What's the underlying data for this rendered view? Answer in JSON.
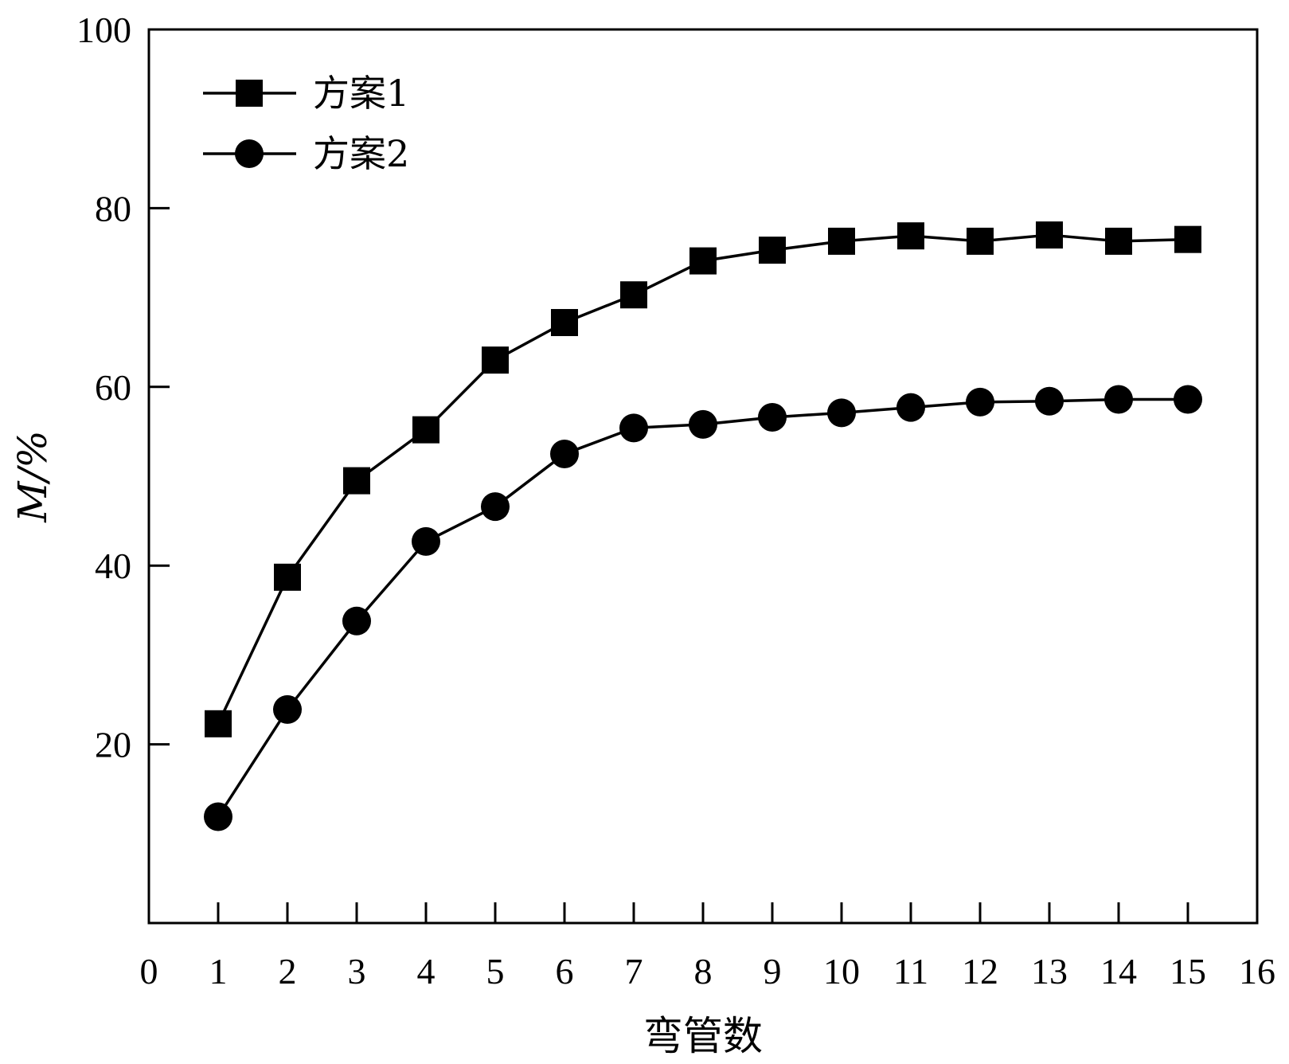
{
  "chart_data": {
    "type": "line",
    "xlabel": "弯管数",
    "ylabel": "M/%",
    "xlim": [
      0,
      16
    ],
    "ylim": [
      0,
      100
    ],
    "x_ticks": [
      "0",
      "1",
      "2",
      "3",
      "4",
      "5",
      "6",
      "7",
      "8",
      "9",
      "10",
      "11",
      "12",
      "13",
      "14",
      "15",
      "16"
    ],
    "y_ticks": [
      "20",
      "40",
      "60",
      "80",
      "100"
    ],
    "grid": false,
    "legend_position": "top-left",
    "x": [
      1,
      2,
      3,
      4,
      5,
      6,
      7,
      8,
      9,
      10,
      11,
      12,
      13,
      14,
      15
    ],
    "series": [
      {
        "name": "方案1",
        "marker": "square",
        "values": [
          22.3,
          38.7,
          49.5,
          55.2,
          63.0,
          67.2,
          70.3,
          74.1,
          75.3,
          76.3,
          76.9,
          76.3,
          77.0,
          76.3,
          76.5
        ]
      },
      {
        "name": "方案2",
        "marker": "circle",
        "values": [
          11.9,
          23.9,
          33.8,
          42.7,
          46.6,
          52.5,
          55.4,
          55.8,
          56.6,
          57.1,
          57.7,
          58.3,
          58.4,
          58.6,
          58.6
        ]
      }
    ],
    "colors": {
      "line": "#000000",
      "marker": "#000000"
    }
  }
}
